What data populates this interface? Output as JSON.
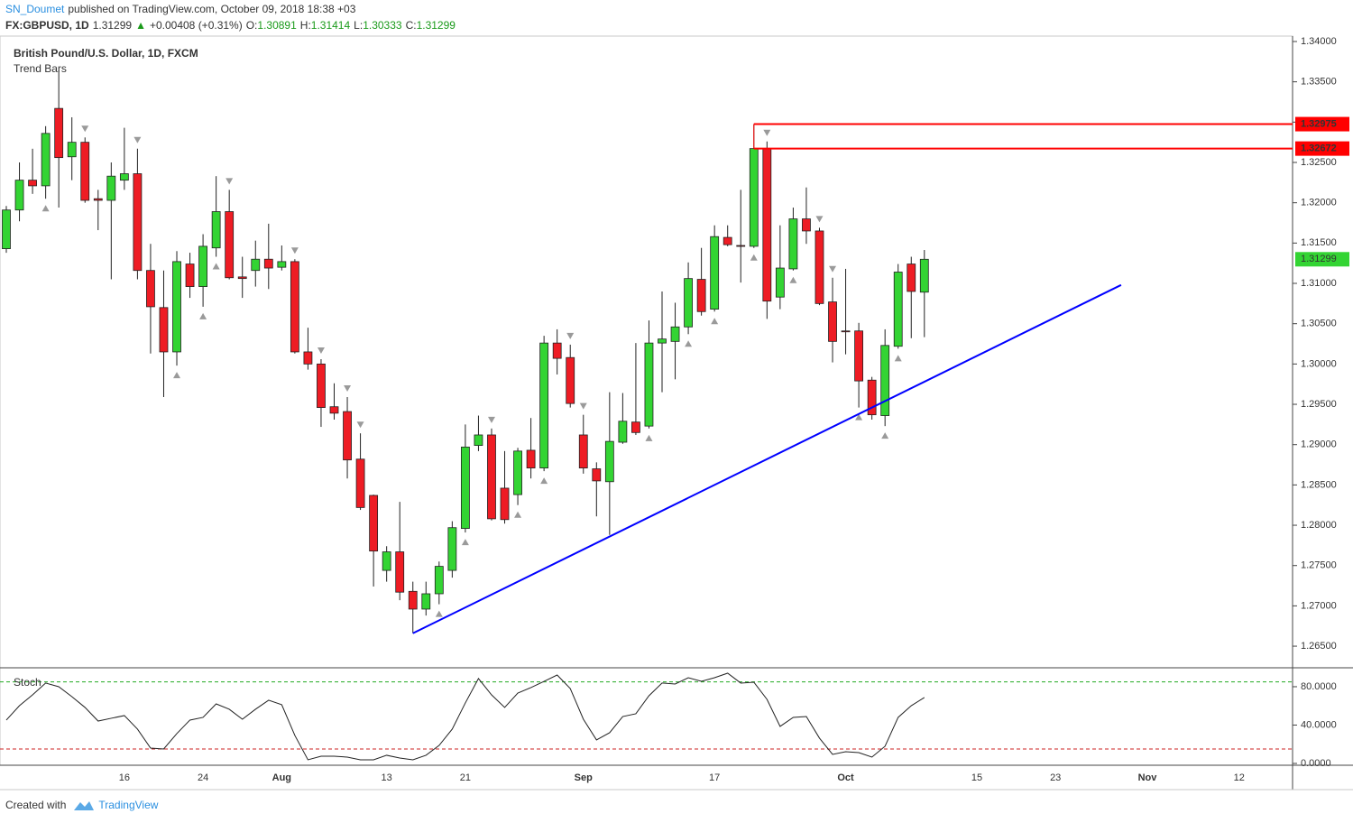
{
  "header": {
    "author": "SN_Doumet",
    "published": "published on TradingView.com, October 09, 2018 18:38 +03",
    "symbol": "FX:GBPUSD, 1D",
    "change": "+0.00408 (+0.31%)",
    "labels": [
      "O:",
      "H:",
      "L:",
      "C:"
    ]
  },
  "footer": {
    "created": "Created with",
    "brand": "TradingView"
  },
  "chart_data": [
    {
      "type": "candlestick",
      "title": "British Pound/U.S. Dollar, 1D, FXCM",
      "subtitle": "Trend Bars",
      "categories": [
        null,
        null,
        null,
        null,
        null,
        null,
        null,
        null,
        null,
        "16",
        null,
        null,
        null,
        null,
        null,
        "24",
        null,
        null,
        null,
        null,
        null,
        "Aug",
        null,
        null,
        null,
        null,
        null,
        null,
        null,
        "13",
        null,
        null,
        null,
        null,
        null,
        "21",
        null,
        null,
        null,
        null,
        null,
        null,
        null,
        null,
        "Sep",
        null,
        null,
        null,
        null,
        null,
        null,
        null,
        null,
        null,
        "17",
        null,
        null,
        null,
        null,
        null,
        null,
        null,
        null,
        null,
        "Oct",
        null,
        null,
        null,
        null,
        null,
        null,
        null,
        null,
        null,
        "15",
        null,
        null,
        null,
        null,
        null,
        "23",
        null,
        null,
        null,
        null,
        null,
        null,
        "Nov",
        null,
        null,
        null,
        null,
        null,
        null,
        "12",
        null,
        null,
        null,
        null
      ],
      "open": [
        1.3143,
        1.3191,
        1.3228,
        1.3221,
        1.3317,
        1.3257,
        1.3275,
        1.3205,
        1.3203,
        1.3228,
        1.3236,
        1.3116,
        1.307,
        1.3015,
        1.3124,
        1.3096,
        1.3144,
        1.3189,
        1.3108,
        1.3116,
        1.313,
        1.312,
        1.3127,
        1.3015,
        1.3,
        1.2947,
        1.2941,
        1.2882,
        1.2837,
        1.2744,
        1.2767,
        1.2718,
        1.2696,
        1.2715,
        1.2744,
        1.2796,
        1.2899,
        1.2912,
        1.2846,
        1.2838,
        1.2893,
        1.2871,
        1.3026,
        1.3008,
        1.2912,
        1.287,
        1.2854,
        1.2903,
        1.2928,
        1.2923,
        1.3026,
        1.3028,
        1.3046,
        1.3105,
        1.3068,
        1.3157,
        1.3147,
        1.3146,
        1.3267,
        1.3083,
        1.3118,
        1.318,
        1.3165,
        1.3077,
        1.3041,
        1.3041,
        1.298,
        1.2936,
        1.3022,
        1.3124,
        1.30891,
        null,
        null,
        null,
        null,
        null,
        null,
        null,
        null,
        null,
        null,
        null,
        null,
        null,
        null,
        null,
        null,
        null,
        null,
        null,
        null,
        null,
        null,
        null,
        null,
        null,
        null,
        null,
        null
      ],
      "high": [
        1.3196,
        1.325,
        1.3267,
        1.3295,
        1.3364,
        1.3306,
        1.3281,
        1.3216,
        1.325,
        1.3293,
        1.3267,
        1.3149,
        1.3116,
        1.314,
        1.3138,
        1.3161,
        1.3233,
        1.3216,
        1.3133,
        1.3153,
        1.3174,
        1.3147,
        1.313,
        1.3045,
        1.3006,
        1.2976,
        1.2959,
        1.2914,
        1.2838,
        1.2774,
        1.2829,
        1.273,
        1.273,
        1.2755,
        1.2805,
        1.2925,
        1.2936,
        1.292,
        1.2892,
        1.2896,
        1.2933,
        1.3035,
        1.3043,
        1.3024,
        1.2937,
        1.2878,
        1.2965,
        1.2964,
        1.3026,
        1.3054,
        1.309,
        1.3076,
        1.3126,
        1.3144,
        1.3172,
        1.3172,
        1.3216,
        1.32975,
        1.3276,
        1.3172,
        1.3194,
        1.3219,
        1.3169,
        1.3107,
        1.3118,
        1.3051,
        1.2984,
        1.3043,
        1.3124,
        1.3133,
        1.31414,
        null,
        null,
        null,
        null,
        null,
        null,
        null,
        null,
        null,
        null,
        null,
        null,
        null,
        null,
        null,
        null,
        null,
        null,
        null,
        null,
        null,
        null,
        null,
        null,
        null,
        null,
        null,
        null
      ],
      "low": [
        1.3138,
        1.3177,
        1.3211,
        1.3205,
        1.3194,
        1.3228,
        1.32,
        1.3166,
        1.3105,
        1.3216,
        1.3105,
        1.3013,
        1.2959,
        1.2998,
        1.3082,
        1.3071,
        1.3133,
        1.3105,
        1.3082,
        1.3096,
        1.3093,
        1.3116,
        1.3013,
        1.2993,
        1.2922,
        1.2931,
        1.2858,
        1.2819,
        1.2724,
        1.273,
        1.2707,
        1.2666,
        1.2688,
        1.2702,
        1.2735,
        1.2791,
        1.2892,
        1.2806,
        1.2802,
        1.2825,
        1.2858,
        1.2867,
        1.2987,
        1.2946,
        1.2864,
        1.2811,
        1.2788,
        1.2901,
        1.2912,
        1.292,
        1.2965,
        1.2981,
        1.3037,
        1.306,
        1.3065,
        1.3146,
        1.3101,
        1.3144,
        1.3056,
        1.3068,
        1.3116,
        1.3149,
        1.3073,
        1.3002,
        1.3012,
        1.2946,
        1.2931,
        1.2923,
        1.3019,
        1.3032,
        1.30333,
        null,
        null,
        null,
        null,
        null,
        null,
        null,
        null,
        null,
        null,
        null,
        null,
        null,
        null,
        null,
        null,
        null,
        null,
        null,
        null,
        null,
        null,
        null,
        null,
        null,
        null,
        null,
        null
      ],
      "close": [
        1.3191,
        1.3228,
        1.3221,
        1.3286,
        1.3256,
        1.3275,
        1.3203,
        1.3203,
        1.3233,
        1.3236,
        1.3116,
        1.3071,
        1.3015,
        1.3127,
        1.3096,
        1.3146,
        1.3189,
        1.3107,
        1.3106,
        1.313,
        1.3119,
        1.3127,
        1.3015,
        1.3,
        1.2946,
        1.2939,
        1.2881,
        1.2822,
        1.2768,
        1.2767,
        1.2717,
        1.2696,
        1.2715,
        1.2749,
        1.2797,
        1.2897,
        1.2912,
        1.2808,
        1.2807,
        1.2892,
        1.2871,
        1.3026,
        1.3007,
        1.2951,
        1.2871,
        1.2855,
        1.2904,
        1.2929,
        1.2915,
        1.3026,
        1.3031,
        1.3046,
        1.3106,
        1.3065,
        1.3158,
        1.3148,
        1.3146,
        1.32672,
        1.3078,
        1.3119,
        1.318,
        1.3165,
        1.3075,
        1.3028,
        1.304,
        1.2979,
        1.2937,
        1.3023,
        1.3114,
        1.309,
        1.31299,
        null,
        null,
        null,
        null,
        null,
        null,
        null,
        null,
        null,
        null,
        null,
        null,
        null,
        null,
        null,
        null,
        null,
        null,
        null,
        null,
        null,
        null,
        null,
        null,
        null,
        null,
        null,
        null
      ],
      "up_color": "#33d433",
      "down_color": "#ee1c24",
      "ylim": [
        1.26232,
        1.34067
      ],
      "yticks": [
        {
          "value": 1.265,
          "label": "1.26500"
        },
        {
          "value": 1.27,
          "label": "1.27000"
        },
        {
          "value": 1.275,
          "label": "1.27500"
        },
        {
          "value": 1.28,
          "label": "1.28000"
        },
        {
          "value": 1.285,
          "label": "1.28500"
        },
        {
          "value": 1.29,
          "label": "1.29000"
        },
        {
          "value": 1.295,
          "label": "1.29500"
        },
        {
          "value": 1.3,
          "label": "1.30000"
        },
        {
          "value": 1.305,
          "label": "1.30500"
        },
        {
          "value": 1.31,
          "label": "1.31000"
        },
        {
          "value": 1.315,
          "label": "1.31500"
        },
        {
          "value": 1.32,
          "label": "1.32000"
        },
        {
          "value": 1.325,
          "label": "1.32500"
        },
        {
          "value": 1.33,
          "label": "1.33000"
        },
        {
          "value": 1.335,
          "label": "1.33500"
        },
        {
          "value": 1.34,
          "label": "1.34000"
        }
      ],
      "pivot_high": [
        6,
        10,
        17,
        22,
        24,
        26,
        27,
        37,
        43,
        44,
        58,
        62,
        63
      ],
      "pivot_low": [
        3,
        13,
        15,
        16,
        33,
        35,
        39,
        41,
        49,
        52,
        54,
        57,
        60,
        65,
        67,
        68
      ],
      "marker_color": "#9a9a9a",
      "horizontal_lines": [
        {
          "value": 1.32975,
          "color": "#ff0000"
        },
        {
          "value": 1.32672,
          "color": "#ff0000"
        }
      ],
      "last_color": "#33d433",
      "trend_line": {
        "color": "#0000ff",
        "x": [
          31,
          85
        ],
        "values": [
          1.2666,
          1.3098
        ]
      }
    },
    {
      "type": "line",
      "title": "Stoch",
      "color": "#222222",
      "values": [
        45.2,
        60.2,
        71.5,
        83.8,
        80.0,
        69.6,
        58.4,
        44.2,
        47.1,
        49.9,
        35.8,
        16.0,
        15.1,
        31.1,
        45.2,
        48.0,
        62.1,
        56.5,
        46.1,
        56.5,
        65.9,
        61.2,
        29.2,
        3.8,
        7.5,
        7.5,
        6.6,
        3.8,
        3.8,
        8.5,
        5.6,
        3.8,
        8.5,
        18.8,
        35.8,
        63.1,
        88.5,
        71.5,
        58.4,
        73.4,
        79.1,
        85.6,
        92.2,
        78.1,
        46.1,
        24.5,
        32.0,
        48.9,
        51.8,
        70.6,
        83.8,
        82.8,
        89.4,
        85.6,
        89.4,
        94.1,
        83.8,
        84.7,
        66.8,
        38.6,
        48.0,
        48.9,
        26.4,
        9.4,
        12.2,
        11.3,
        6.6,
        17.9,
        48.0,
        60.2,
        68.7,
        null,
        null,
        null,
        null,
        null,
        null,
        null,
        null,
        null,
        null,
        null,
        null,
        null,
        null,
        null,
        null,
        null,
        null,
        null,
        null,
        null,
        null,
        null,
        null,
        null,
        null,
        null,
        null
      ],
      "ylim": [
        -1.9,
        98.8
      ],
      "yticks": [
        {
          "value": 0,
          "label": "0.0000"
        },
        {
          "value": 40,
          "label": "40.0000"
        },
        {
          "value": 80,
          "label": "80.0000"
        }
      ],
      "levels": [
        {
          "value": 85,
          "color": "#22aa22"
        },
        {
          "value": 15,
          "color": "#cc2222"
        }
      ]
    }
  ]
}
